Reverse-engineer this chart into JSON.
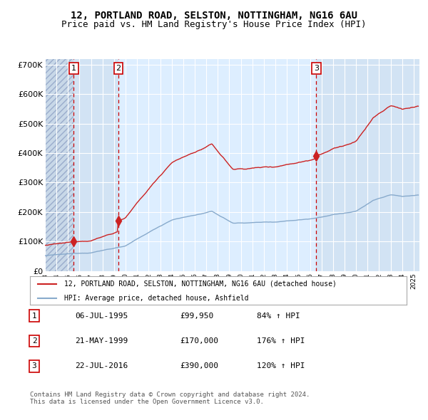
{
  "title": "12, PORTLAND ROAD, SELSTON, NOTTINGHAM, NG16 6AU",
  "subtitle": "Price paid vs. HM Land Registry's House Price Index (HPI)",
  "ylim": [
    0,
    720000
  ],
  "yticks": [
    0,
    100000,
    200000,
    300000,
    400000,
    500000,
    600000,
    700000
  ],
  "ytick_labels": [
    "£0",
    "£100K",
    "£200K",
    "£300K",
    "£400K",
    "£500K",
    "£600K",
    "£700K"
  ],
  "xlim_start": 1993.0,
  "xlim_end": 2025.5,
  "sale_dates": [
    1995.5,
    1999.38,
    2016.55
  ],
  "sale_prices": [
    99950,
    170000,
    390000
  ],
  "sale_labels": [
    "1",
    "2",
    "3"
  ],
  "hpi_color": "#88aacc",
  "price_color": "#cc2222",
  "bg_color": "#ddeeff",
  "hatch_color": "#aabbcc",
  "grid_color": "#ffffff",
  "dashed_line_color": "#cc0000",
  "legend_entries": [
    "12, PORTLAND ROAD, SELSTON, NOTTINGHAM, NG16 6AU (detached house)",
    "HPI: Average price, detached house, Ashfield"
  ],
  "table_rows": [
    [
      "1",
      "06-JUL-1995",
      "£99,950",
      "84% ↑ HPI"
    ],
    [
      "2",
      "21-MAY-1999",
      "£170,000",
      "176% ↑ HPI"
    ],
    [
      "3",
      "22-JUL-2016",
      "£390,000",
      "120% ↑ HPI"
    ]
  ],
  "footer": "Contains HM Land Registry data © Crown copyright and database right 2024.\nThis data is licensed under the Open Government Licence v3.0.",
  "title_fontsize": 10,
  "subtitle_fontsize": 9
}
